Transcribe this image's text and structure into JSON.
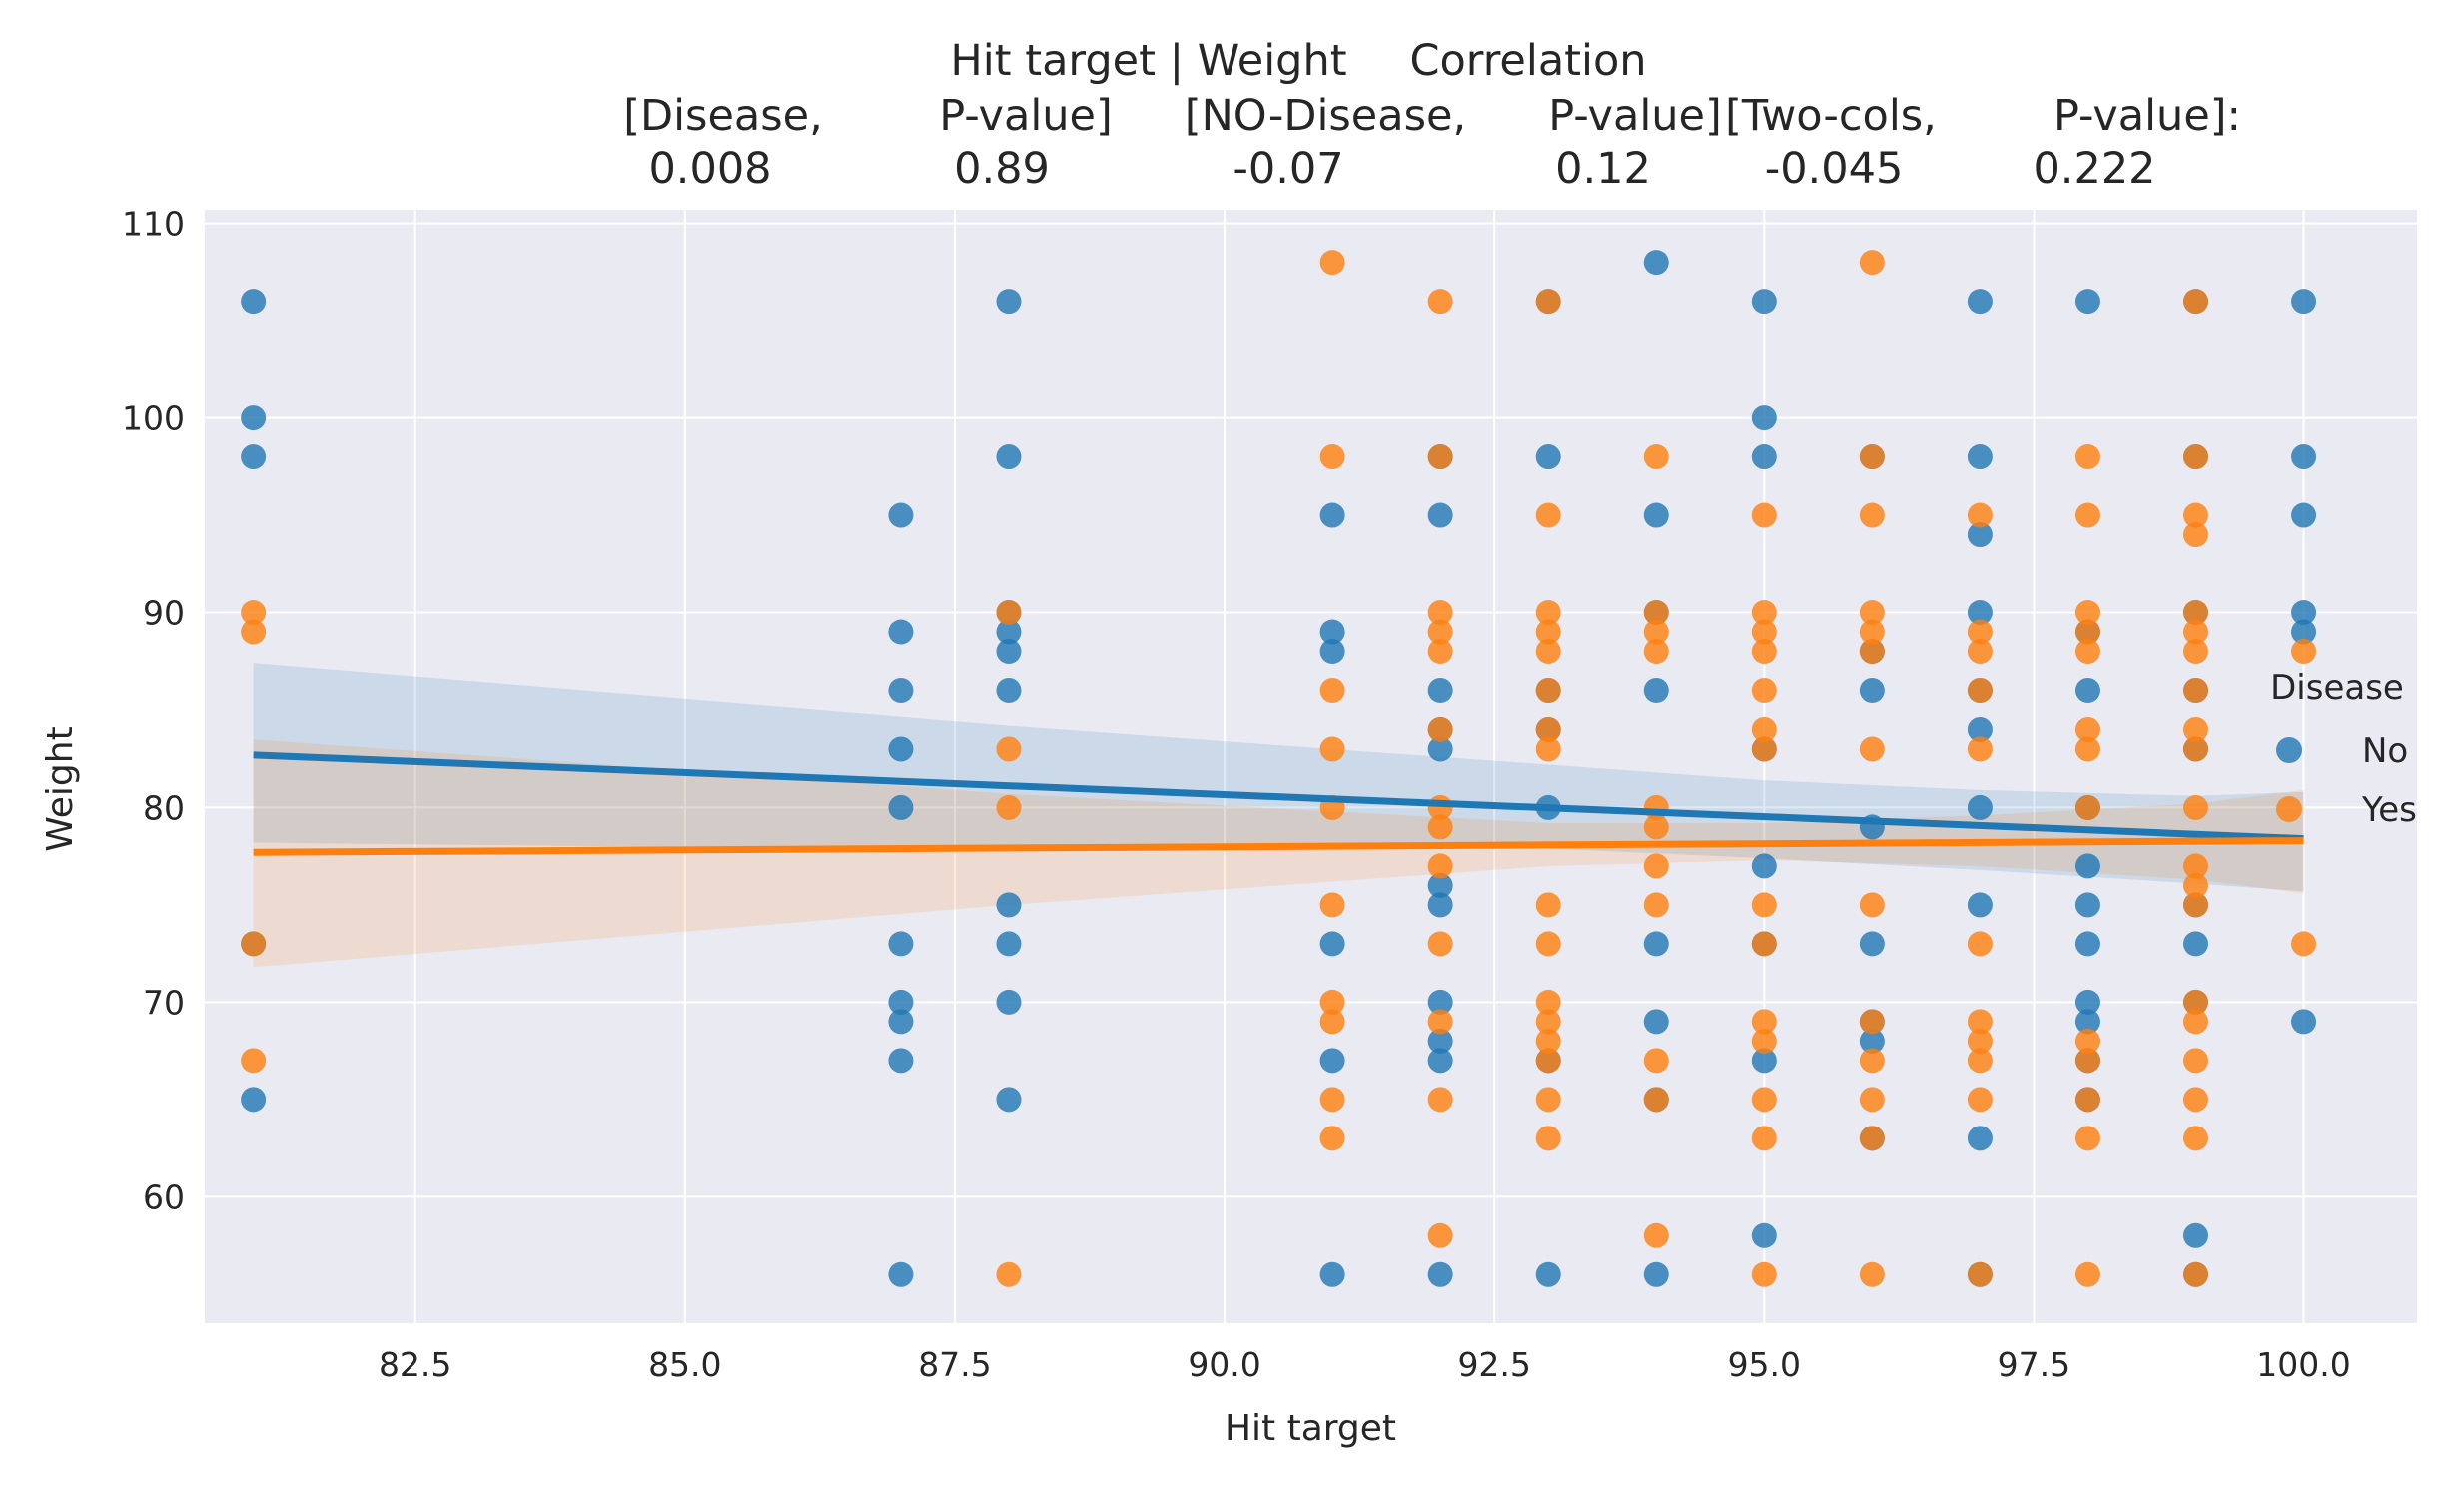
{
  "chart_data": {
    "type": "scatter",
    "title_lines": [
      [
        "Hit target | Weight",
        "Correlation"
      ],
      [
        "[Disease,",
        "P-value]",
        "[NO-Disease,",
        "P-value]",
        "[Two-cols,",
        "P-value]:"
      ],
      [
        "0.008",
        "0.89",
        "-0.07",
        "0.12",
        "-0.045",
        "0.222"
      ]
    ],
    "xlabel": "Hit target",
    "ylabel": "Weight",
    "xlim": [
      80.55,
      101.05
    ],
    "ylim": [
      53.5,
      110.7
    ],
    "xticks": [
      82.5,
      85.0,
      87.5,
      90.0,
      92.5,
      95.0,
      97.5,
      100.0
    ],
    "xtick_labels": [
      "82.5",
      "85.0",
      "87.5",
      "90.0",
      "92.5",
      "95.0",
      "97.5",
      "100.0"
    ],
    "yticks": [
      60,
      70,
      80,
      90,
      100,
      110
    ],
    "ytick_labels": [
      "60",
      "70",
      "80",
      "90",
      "100",
      "110"
    ],
    "grid": true,
    "legend": {
      "title": "Disease",
      "placement": "right",
      "entries": [
        "No",
        "Yes"
      ]
    },
    "series": [
      {
        "name": "No",
        "color": "#1f77b4",
        "points": [
          [
            81,
            106
          ],
          [
            81,
            100
          ],
          [
            81,
            98
          ],
          [
            81,
            73
          ],
          [
            81,
            65
          ],
          [
            87,
            95
          ],
          [
            87,
            89
          ],
          [
            87,
            86
          ],
          [
            87,
            83
          ],
          [
            87,
            80
          ],
          [
            87,
            73
          ],
          [
            87,
            70
          ],
          [
            87,
            69
          ],
          [
            87,
            67
          ],
          [
            87,
            56
          ],
          [
            88,
            106
          ],
          [
            88,
            98
          ],
          [
            88,
            90
          ],
          [
            88,
            89
          ],
          [
            88,
            88
          ],
          [
            88,
            86
          ],
          [
            88,
            75
          ],
          [
            88,
            73
          ],
          [
            88,
            70
          ],
          [
            88,
            65
          ],
          [
            91,
            95
          ],
          [
            91,
            89
          ],
          [
            91,
            88
          ],
          [
            91,
            73
          ],
          [
            91,
            67
          ],
          [
            91,
            56
          ],
          [
            92,
            98
          ],
          [
            92,
            95
          ],
          [
            92,
            86
          ],
          [
            92,
            84
          ],
          [
            92,
            83
          ],
          [
            92,
            76
          ],
          [
            92,
            75
          ],
          [
            92,
            70
          ],
          [
            92,
            68
          ],
          [
            92,
            67
          ],
          [
            92,
            56
          ],
          [
            93,
            106
          ],
          [
            93,
            98
          ],
          [
            93,
            86
          ],
          [
            93,
            84
          ],
          [
            93,
            80
          ],
          [
            93,
            67
          ],
          [
            93,
            56
          ],
          [
            94,
            108
          ],
          [
            94,
            95
          ],
          [
            94,
            90
          ],
          [
            94,
            86
          ],
          [
            94,
            73
          ],
          [
            94,
            69
          ],
          [
            94,
            65
          ],
          [
            94,
            56
          ],
          [
            95,
            106
          ],
          [
            95,
            100
          ],
          [
            95,
            98
          ],
          [
            95,
            83
          ],
          [
            95,
            77
          ],
          [
            95,
            73
          ],
          [
            95,
            67
          ],
          [
            95,
            58
          ],
          [
            96,
            98
          ],
          [
            96,
            88
          ],
          [
            96,
            86
          ],
          [
            96,
            79
          ],
          [
            96,
            73
          ],
          [
            96,
            69
          ],
          [
            96,
            68
          ],
          [
            96,
            63
          ],
          [
            97,
            106
          ],
          [
            97,
            98
          ],
          [
            97,
            94
          ],
          [
            97,
            90
          ],
          [
            97,
            86
          ],
          [
            97,
            84
          ],
          [
            97,
            80
          ],
          [
            97,
            75
          ],
          [
            97,
            63
          ],
          [
            97,
            56
          ],
          [
            98,
            106
          ],
          [
            98,
            89
          ],
          [
            98,
            86
          ],
          [
            98,
            80
          ],
          [
            98,
            77
          ],
          [
            98,
            75
          ],
          [
            98,
            73
          ],
          [
            98,
            70
          ],
          [
            98,
            69
          ],
          [
            98,
            67
          ],
          [
            98,
            65
          ],
          [
            99,
            106
          ],
          [
            99,
            98
          ],
          [
            99,
            90
          ],
          [
            99,
            86
          ],
          [
            99,
            83
          ],
          [
            99,
            75
          ],
          [
            99,
            73
          ],
          [
            99,
            70
          ],
          [
            99,
            58
          ],
          [
            99,
            56
          ],
          [
            100,
            106
          ],
          [
            100,
            98
          ],
          [
            100,
            95
          ],
          [
            100,
            90
          ],
          [
            100,
            89
          ],
          [
            100,
            69
          ]
        ],
        "regression": {
          "x": [
            81,
            100
          ],
          "y": [
            82.7,
            78.4
          ]
        },
        "ci_band": {
          "x": [
            81,
            88,
            93,
            95,
            97,
            99,
            100
          ],
          "lower": [
            78.2,
            77.8,
            77.9,
            77.4,
            76.8,
            76.1,
            75.7
          ],
          "upper": [
            87.4,
            84.2,
            82.2,
            81.4,
            80.9,
            80.6,
            80.8
          ]
        }
      },
      {
        "name": "Yes",
        "color": "#ff7f0e",
        "points": [
          [
            81,
            90
          ],
          [
            81,
            89
          ],
          [
            81,
            73
          ],
          [
            81,
            67
          ],
          [
            88,
            90
          ],
          [
            88,
            83
          ],
          [
            88,
            80
          ],
          [
            88,
            56
          ],
          [
            91,
            108
          ],
          [
            91,
            98
          ],
          [
            91,
            86
          ],
          [
            91,
            83
          ],
          [
            91,
            80
          ],
          [
            91,
            75
          ],
          [
            91,
            70
          ],
          [
            91,
            69
          ],
          [
            91,
            65
          ],
          [
            91,
            63
          ],
          [
            92,
            106
          ],
          [
            92,
            98
          ],
          [
            92,
            90
          ],
          [
            92,
            89
          ],
          [
            92,
            88
          ],
          [
            92,
            84
          ],
          [
            92,
            80
          ],
          [
            92,
            79
          ],
          [
            92,
            77
          ],
          [
            92,
            73
          ],
          [
            92,
            69
          ],
          [
            92,
            65
          ],
          [
            92,
            58
          ],
          [
            93,
            106
          ],
          [
            93,
            95
          ],
          [
            93,
            90
          ],
          [
            93,
            89
          ],
          [
            93,
            88
          ],
          [
            93,
            86
          ],
          [
            93,
            84
          ],
          [
            93,
            83
          ],
          [
            93,
            75
          ],
          [
            93,
            73
          ],
          [
            93,
            70
          ],
          [
            93,
            69
          ],
          [
            93,
            68
          ],
          [
            93,
            67
          ],
          [
            93,
            65
          ],
          [
            93,
            63
          ],
          [
            94,
            98
          ],
          [
            94,
            90
          ],
          [
            94,
            89
          ],
          [
            94,
            88
          ],
          [
            94,
            80
          ],
          [
            94,
            79
          ],
          [
            94,
            77
          ],
          [
            94,
            75
          ],
          [
            94,
            67
          ],
          [
            94,
            65
          ],
          [
            94,
            58
          ],
          [
            95,
            95
          ],
          [
            95,
            90
          ],
          [
            95,
            89
          ],
          [
            95,
            88
          ],
          [
            95,
            86
          ],
          [
            95,
            84
          ],
          [
            95,
            83
          ],
          [
            95,
            75
          ],
          [
            95,
            73
          ],
          [
            95,
            69
          ],
          [
            95,
            68
          ],
          [
            95,
            65
          ],
          [
            95,
            63
          ],
          [
            95,
            56
          ],
          [
            96,
            108
          ],
          [
            96,
            98
          ],
          [
            96,
            95
          ],
          [
            96,
            90
          ],
          [
            96,
            89
          ],
          [
            96,
            88
          ],
          [
            96,
            83
          ],
          [
            96,
            75
          ],
          [
            96,
            69
          ],
          [
            96,
            67
          ],
          [
            96,
            65
          ],
          [
            96,
            63
          ],
          [
            96,
            56
          ],
          [
            97,
            95
          ],
          [
            97,
            89
          ],
          [
            97,
            88
          ],
          [
            97,
            86
          ],
          [
            97,
            83
          ],
          [
            97,
            73
          ],
          [
            97,
            69
          ],
          [
            97,
            68
          ],
          [
            97,
            67
          ],
          [
            97,
            65
          ],
          [
            97,
            56
          ],
          [
            98,
            98
          ],
          [
            98,
            95
          ],
          [
            98,
            90
          ],
          [
            98,
            89
          ],
          [
            98,
            88
          ],
          [
            98,
            84
          ],
          [
            98,
            83
          ],
          [
            98,
            80
          ],
          [
            98,
            68
          ],
          [
            98,
            67
          ],
          [
            98,
            65
          ],
          [
            98,
            63
          ],
          [
            98,
            56
          ],
          [
            99,
            106
          ],
          [
            99,
            98
          ],
          [
            99,
            95
          ],
          [
            99,
            94
          ],
          [
            99,
            90
          ],
          [
            99,
            89
          ],
          [
            99,
            88
          ],
          [
            99,
            86
          ],
          [
            99,
            84
          ],
          [
            99,
            83
          ],
          [
            99,
            80
          ],
          [
            99,
            77
          ],
          [
            99,
            76
          ],
          [
            99,
            75
          ],
          [
            99,
            70
          ],
          [
            99,
            69
          ],
          [
            99,
            67
          ],
          [
            99,
            65
          ],
          [
            99,
            63
          ],
          [
            99,
            56
          ],
          [
            100,
            88
          ],
          [
            100,
            73
          ]
        ],
        "regression": {
          "x": [
            81,
            100
          ],
          "y": [
            77.7,
            78.3
          ]
        },
        "ci_band": {
          "x": [
            81,
            88,
            93,
            95,
            97,
            99,
            100
          ],
          "lower": [
            71.8,
            75.0,
            77.0,
            77.3,
            77.0,
            76.3,
            75.6
          ],
          "upper": [
            83.5,
            80.7,
            79.2,
            79.2,
            79.6,
            80.2,
            80.9
          ]
        }
      }
    ]
  }
}
